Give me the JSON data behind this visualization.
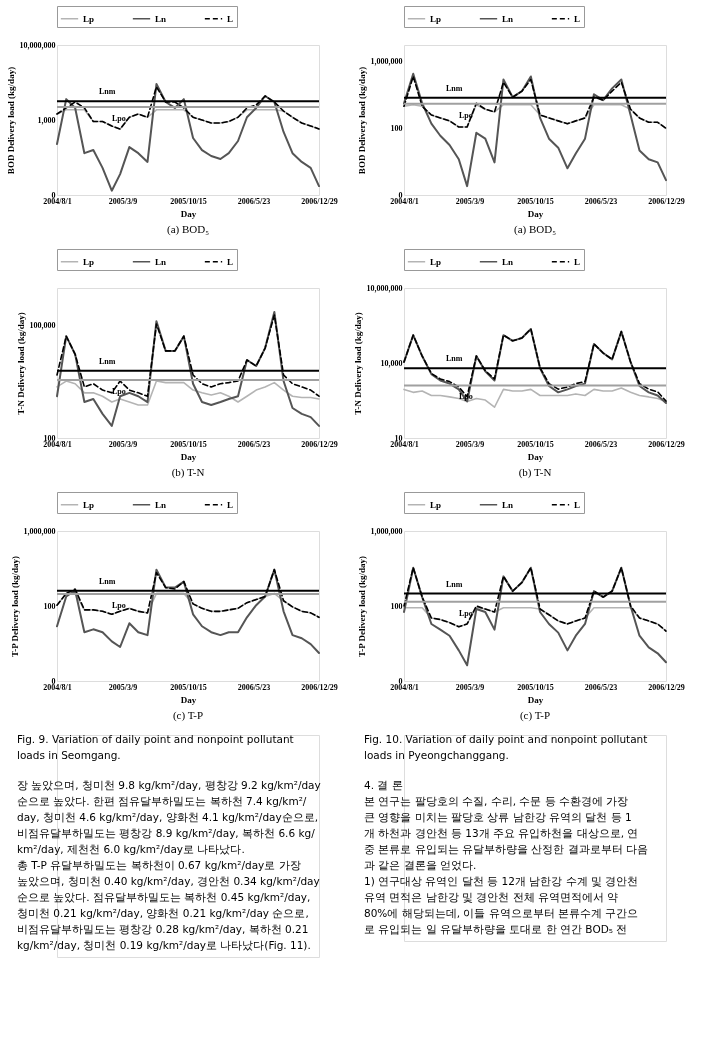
{
  "chart_data": [
    {
      "type": "line",
      "title": "(a)  BOD₅",
      "xlabel": "Day",
      "ylabel": "BOD Delivery load (kg/day)",
      "log": "y",
      "legend": "top",
      "x": [
        "2004-08-01",
        "2004-09-01",
        "2004-10-01",
        "2004-11-01",
        "2004-12-01",
        "2005-01-01",
        "2005-02-01",
        "2005-03-01",
        "2005-04-01",
        "2005-05-01",
        "2005-06-01",
        "2005-07-01",
        "2005-08-01",
        "2005-09-01",
        "2005-10-01",
        "2005-11-01",
        "2005-12-01",
        "2006-01-01",
        "2006-02-01",
        "2006-03-01",
        "2006-04-01",
        "2006-05-01",
        "2006-06-01",
        "2006-07-01",
        "2006-08-01",
        "2006-09-01",
        "2006-10-01",
        "2006-11-01",
        "2006-12-01",
        "2006-12-29"
      ],
      "xlim": [
        "2004-08-01",
        "2006-12-29"
      ],
      "xticks": [
        {
          "value": "2004-08-01",
          "label": "2004/8/1"
        },
        {
          "value": "2005-03-09",
          "label": "2005/3/9"
        },
        {
          "value": "2005-10-15",
          "label": "2005/10/15"
        },
        {
          "value": "2006-05-23",
          "label": "2006/5/23"
        },
        {
          "value": "2006-12-29",
          "label": "2006/12/29"
        }
      ],
      "ylim": [
        0.1,
        10000000
      ],
      "yticks": [
        {
          "value": 0.1,
          "label": "0"
        },
        {
          "value": 1000,
          "label": "1,000"
        },
        {
          "value": 10000000,
          "label": "10,000,000"
        }
      ],
      "series": [
        {
          "name": "Lp",
          "color": "#b4b4b4",
          "values": [
            2100,
            3500,
            3500,
            3500,
            830,
            830,
            480,
            330,
            1400,
            2100,
            1400,
            3500,
            3500,
            3500,
            3500,
            1400,
            1000,
            690,
            690,
            830,
            1400,
            3500,
            3500,
            3500,
            3500,
            3000,
            1400,
            690,
            480,
            330
          ]
        },
        {
          "name": "Ln",
          "color": "#555555",
          "values": [
            52,
            13000,
            4400,
            17,
            25,
            2.8,
            0.17,
            1.3,
            36,
            17,
            5.8,
            83000,
            9100,
            4400,
            13000,
            110,
            25,
            12,
            8.3,
            17,
            76,
            1400,
            4400,
            19000,
            9100,
            230,
            17,
            5.8,
            2.8,
            0.3
          ]
        },
        {
          "name": "L",
          "color": "#000000",
          "line_style": "dashed",
          "values": [
            2100,
            4400,
            9100,
            4400,
            830,
            830,
            480,
            330,
            1400,
            2100,
            1400,
            58000,
            9100,
            9100,
            4400,
            1400,
            1000,
            690,
            690,
            830,
            1400,
            4400,
            6300,
            19000,
            9100,
            3000,
            1400,
            690,
            480,
            330
          ]
        }
      ],
      "ref_lines": [
        {
          "axis": "y",
          "value": 10000,
          "label": "Lnm",
          "color": "#000000"
        },
        {
          "axis": "y",
          "value": 4900,
          "label": "Lpo",
          "color": "#a0a0a0"
        }
      ]
    },
    {
      "type": "line",
      "title": "(a)  BOD₅",
      "xlabel": "Day",
      "ylabel": "BOD Delivery load (kg/day)",
      "log": "y",
      "legend": "top",
      "x": [
        "2004-08-01",
        "2004-09-01",
        "2004-10-01",
        "2004-11-01",
        "2004-12-01",
        "2005-01-01",
        "2005-02-01",
        "2005-03-01",
        "2005-04-01",
        "2005-05-01",
        "2005-06-01",
        "2005-07-01",
        "2005-08-01",
        "2005-09-01",
        "2005-10-01",
        "2005-11-01",
        "2005-12-01",
        "2006-01-01",
        "2006-02-01",
        "2006-03-01",
        "2006-04-01",
        "2006-05-01",
        "2006-06-01",
        "2006-07-01",
        "2006-08-01",
        "2006-09-01",
        "2006-10-01",
        "2006-11-01",
        "2006-12-01",
        "2006-12-29"
      ],
      "xlim": [
        "2004-08-01",
        "2006-12-29"
      ],
      "xticks": [
        {
          "value": "2004-08-01",
          "label": "2004/8/1"
        },
        {
          "value": "2005-03-09",
          "label": "2005/3/9"
        },
        {
          "value": "2005-10-15",
          "label": "2005/10/15"
        },
        {
          "value": "2006-05-23",
          "label": "2006/5/23"
        },
        {
          "value": "2006-12-29",
          "label": "2006/12/29"
        }
      ],
      "ylim": [
        0.01,
        10000000
      ],
      "yticks": [
        {
          "value": 0.01,
          "label": "0"
        },
        {
          "value": 100,
          "label": "100"
        },
        {
          "value": 1000000,
          "label": "1,000,000"
        }
      ],
      "series": [
        {
          "name": "Lp",
          "color": "#b4b4b4",
          "values": [
            2100,
            2600,
            2100,
            630,
            420,
            280,
            120,
            120,
            2600,
            1400,
            960,
            2600,
            2600,
            2600,
            2600,
            630,
            420,
            280,
            190,
            280,
            420,
            2600,
            2600,
            2600,
            2600,
            1400,
            420,
            230,
            230,
            100
          ]
        },
        {
          "name": "Ln",
          "color": "#555555",
          "values": [
            3200,
            190000,
            3200,
            190,
            36,
            10,
            1.4,
            0.034,
            54,
            24,
            0.9,
            85000,
            7400,
            17000,
            130000,
            420,
            24,
            6.9,
            0.4,
            3.1,
            24,
            11000,
            4900,
            25000,
            85000,
            630,
            4.7,
            1.4,
            0.9,
            0.078
          ]
        },
        {
          "name": "L",
          "color": "#000000",
          "line_style": "dashed",
          "values": [
            2100,
            130000,
            2100,
            630,
            420,
            280,
            120,
            120,
            3200,
            1400,
            960,
            58000,
            7400,
            17000,
            85000,
            630,
            420,
            280,
            190,
            280,
            420,
            7400,
            4900,
            17000,
            58000,
            1400,
            420,
            230,
            230,
            100
          ]
        }
      ],
      "ref_lines": [
        {
          "axis": "y",
          "value": 6800,
          "label": "Lnm",
          "color": "#000000"
        },
        {
          "axis": "y",
          "value": 3000,
          "label": "Lpo",
          "color": "#a0a0a0"
        }
      ]
    },
    {
      "type": "line",
      "title": "(b)  T-N",
      "xlabel": "Day",
      "ylabel": "T-N Delivery load (kg/day)",
      "log": "y",
      "legend": "top",
      "x": [
        "2004-08-01",
        "2004-09-01",
        "2004-10-01",
        "2004-11-01",
        "2004-12-01",
        "2005-01-01",
        "2005-02-01",
        "2005-03-01",
        "2005-04-01",
        "2005-05-01",
        "2005-06-01",
        "2005-07-01",
        "2005-08-01",
        "2005-09-01",
        "2005-10-01",
        "2005-11-01",
        "2005-12-01",
        "2006-01-01",
        "2006-02-01",
        "2006-03-01",
        "2006-04-01",
        "2006-05-01",
        "2006-06-01",
        "2006-07-01",
        "2006-08-01",
        "2006-09-01",
        "2006-10-01",
        "2006-11-01",
        "2006-12-01",
        "2006-12-29"
      ],
      "xlim": [
        "2004-08-01",
        "2006-12-29"
      ],
      "xticks": [
        {
          "value": "2004-08-01",
          "label": "2004/8/1"
        },
        {
          "value": "2005-03-09",
          "label": "2005/3/9"
        },
        {
          "value": "2005-10-15",
          "label": "2005/10/15"
        },
        {
          "value": "2006-05-23",
          "label": "2006/5/23"
        },
        {
          "value": "2006-12-29",
          "label": "2006/12/29"
        }
      ],
      "ylim": [
        100,
        1000000
      ],
      "yticks": [
        {
          "value": 100,
          "label": "100"
        },
        {
          "value": 100000,
          "label": "100,000"
        }
      ],
      "series": [
        {
          "name": "Lp",
          "color": "#b4b4b4",
          "values": [
            2300,
            3300,
            2800,
            1600,
            1600,
            1300,
            910,
            1100,
            910,
            760,
            760,
            3300,
            3000,
            3000,
            3000,
            1900,
            1600,
            1400,
            1600,
            1300,
            910,
            1300,
            1900,
            2300,
            3000,
            1900,
            1300,
            1200,
            1200,
            1100
          ]
        },
        {
          "name": "Ln",
          "color": "#555555",
          "values": [
            1300,
            52000,
            17000,
            910,
            1100,
            440,
            210,
            1300,
            1600,
            1300,
            910,
            130000,
            21000,
            21000,
            52000,
            2800,
            910,
            760,
            910,
            1100,
            1300,
            12000,
            8300,
            25000,
            230000,
            3300,
            630,
            440,
            360,
            210
          ]
        },
        {
          "name": "L",
          "color": "#000000",
          "line_style": "dashed",
          "values": [
            4800,
            52000,
            17000,
            2300,
            2800,
            1900,
            1600,
            3300,
            1900,
            1600,
            1300,
            110000,
            21000,
            21000,
            52000,
            4800,
            2800,
            2300,
            2800,
            3000,
            3300,
            12000,
            8300,
            25000,
            190000,
            4800,
            2800,
            2300,
            1900,
            1300
          ]
        }
      ],
      "ref_lines": [
        {
          "axis": "y",
          "value": 6200,
          "label": "Lnm",
          "color": "#000000"
        },
        {
          "axis": "y",
          "value": 3500,
          "label": "Lpo",
          "color": "#a0a0a0"
        }
      ]
    },
    {
      "type": "line",
      "title": "(b)  T-N",
      "xlabel": "Day",
      "ylabel": "T-N Delivery load (kg/day)",
      "log": "y",
      "legend": "top",
      "x": [
        "2004-08-01",
        "2004-09-01",
        "2004-10-01",
        "2004-11-01",
        "2004-12-01",
        "2005-01-01",
        "2005-02-01",
        "2005-03-01",
        "2005-04-01",
        "2005-05-01",
        "2005-06-01",
        "2005-07-01",
        "2005-08-01",
        "2005-09-01",
        "2005-10-01",
        "2005-11-01",
        "2005-12-01",
        "2006-01-01",
        "2006-02-01",
        "2006-03-01",
        "2006-04-01",
        "2006-05-01",
        "2006-06-01",
        "2006-07-01",
        "2006-08-01",
        "2006-09-01",
        "2006-10-01",
        "2006-11-01",
        "2006-12-01",
        "2006-12-29"
      ],
      "xlim": [
        "2004-08-01",
        "2006-12-29"
      ],
      "xticks": [
        {
          "value": "2004-08-01",
          "label": "2004/8/1"
        },
        {
          "value": "2005-03-09",
          "label": "2005/3/9"
        },
        {
          "value": "2005-10-15",
          "label": "2005/10/15"
        },
        {
          "value": "2006-05-23",
          "label": "2006/5/23"
        },
        {
          "value": "2006-12-29",
          "label": "2006/12/29"
        }
      ],
      "ylim": [
        10,
        10000000
      ],
      "yticks": [
        {
          "value": 10,
          "label": "10"
        },
        {
          "value": 10000,
          "label": "10,000"
        },
        {
          "value": 10000000,
          "label": "10,000,000"
        }
      ],
      "series": [
        {
          "name": "Lp",
          "color": "#b4b4b4",
          "values": [
            880,
            670,
            760,
            500,
            500,
            440,
            380,
            290,
            380,
            330,
            170,
            880,
            760,
            760,
            880,
            500,
            500,
            500,
            500,
            580,
            500,
            880,
            760,
            760,
            1000,
            670,
            500,
            440,
            380,
            290
          ]
        },
        {
          "name": "Ln",
          "color": "#555555",
          "values": [
            11000,
            130000,
            19000,
            3600,
            2000,
            1500,
            880,
            290,
            19000,
            4700,
            2000,
            130000,
            77000,
            100000,
            230000,
            6200,
            1200,
            670,
            880,
            1200,
            1500,
            58000,
            25000,
            14000,
            180000,
            11000,
            1200,
            670,
            500,
            250
          ]
        },
        {
          "name": "L",
          "color": "#000000",
          "line_style": "dashed",
          "values": [
            11000,
            130000,
            19000,
            3800,
            2300,
            1800,
            1100,
            450,
            19000,
            4900,
            2300,
            130000,
            77000,
            100000,
            230000,
            6400,
            1500,
            900,
            1100,
            1500,
            1800,
            58000,
            25000,
            14000,
            180000,
            11000,
            1500,
            900,
            700,
            300
          ]
        }
      ],
      "ref_lines": [
        {
          "axis": "y",
          "value": 6200,
          "label": "Lnm",
          "color": "#000000"
        },
        {
          "axis": "y",
          "value": 1260,
          "label": "Lpo",
          "color": "#a0a0a0"
        }
      ]
    },
    {
      "type": "line",
      "title": "(c)  T-P",
      "xlabel": "Day",
      "ylabel": "T-P Delivery load (kg/day)",
      "log": "y",
      "legend": "top",
      "x": [
        "2004-08-01",
        "2004-09-01",
        "2004-10-01",
        "2004-11-01",
        "2004-12-01",
        "2005-01-01",
        "2005-02-01",
        "2005-03-01",
        "2005-04-01",
        "2005-05-01",
        "2005-06-01",
        "2005-07-01",
        "2005-08-01",
        "2005-09-01",
        "2005-10-01",
        "2005-11-01",
        "2005-12-01",
        "2006-01-01",
        "2006-02-01",
        "2006-03-01",
        "2006-04-01",
        "2006-05-01",
        "2006-06-01",
        "2006-07-01",
        "2006-08-01",
        "2006-09-01",
        "2006-10-01",
        "2006-11-01",
        "2006-12-01",
        "2006-12-29"
      ],
      "xlim": [
        "2004-08-01",
        "2006-12-29"
      ],
      "xticks": [
        {
          "value": "2004-08-01",
          "label": "2004/8/1"
        },
        {
          "value": "2005-03-09",
          "label": "2005/3/9"
        },
        {
          "value": "2005-10-15",
          "label": "2005/10/15"
        },
        {
          "value": "2006-05-23",
          "label": "2006/5/23"
        },
        {
          "value": "2006-12-29",
          "label": "2006/12/29"
        }
      ],
      "ylim": [
        0.01,
        1000000
      ],
      "yticks": [
        {
          "value": 0.01,
          "label": "0"
        },
        {
          "value": 100,
          "label": "100"
        },
        {
          "value": 1000000,
          "label": "1,000,000"
        }
      ],
      "series": [
        {
          "name": "Lp",
          "color": "#b4b4b4",
          "values": [
            110,
            470,
            470,
            62,
            62,
            52,
            36,
            52,
            75,
            52,
            43,
            470,
            470,
            470,
            470,
            130,
            75,
            52,
            52,
            62,
            75,
            150,
            220,
            320,
            470,
            190,
            90,
            52,
            43,
            25
          ]
        },
        {
          "name": "Ln",
          "color": "#555555",
          "values": [
            8.3,
            320,
            670,
            4.0,
            5.7,
            4.0,
            1.3,
            0.65,
            12,
            4.0,
            2.8,
            8700,
            960,
            960,
            2000,
            36,
            8.3,
            4.0,
            2.8,
            4.0,
            4.0,
            25,
            110,
            320,
            8700,
            52,
            2.8,
            1.9,
            0.93,
            0.31
          ]
        },
        {
          "name": "L",
          "color": "#000000",
          "line_style": "dashed",
          "values": [
            110,
            470,
            800,
            62,
            62,
            52,
            36,
            52,
            75,
            52,
            43,
            6000,
            960,
            800,
            2000,
            130,
            75,
            52,
            52,
            62,
            75,
            150,
            220,
            320,
            8700,
            190,
            90,
            52,
            43,
            25
          ]
        }
      ],
      "ref_lines": [
        {
          "axis": "y",
          "value": 650,
          "label": "Lnm",
          "color": "#000000"
        },
        {
          "axis": "y",
          "value": 430,
          "label": "Lpo",
          "color": "#a0a0a0"
        }
      ],
      "annotations": [
        "Fig. 9. Variation of daily point and nonpoint pollutant loads in Seomgang.",
        "장 높았으며, 청미천 9.8 kg/km²/day, 평창강 9.2 kg/km²/day",
        "순으로 높았다. 한편 점유달부하밀도는 복하천 7.4 kg/km²/",
        "day, 청미천 4.6 kg/km²/day, 양화천 4.1 kg/km²/day순으로,",
        "비점유달부하밀도는 평창강 8.9 kg/km²/day, 복하천 6.6 kg/",
        "km²/day, 제천천 6.0 kg/km²/day로 나타났다.",
        "총 T-P 유달부하밀도는 복하천이 0.67 kg/km²/day로 가장",
        "높았으며, 청미천 0.40 kg/km²/day, 경안천 0.34 kg/km²/day",
        "순으로 높았다. 점유달부하밀도는 복하천 0.45 kg/km²/day,",
        "청미천 0.21 kg/km²/day, 양화천 0.21 kg/km²/day 순으로,",
        "비점유달부하밀도는 평창강 0.28 kg/km²/day, 복하천 0.21",
        "kg/km²/day, 청미천 0.19 kg/km²/day로 나타났다(Fig. 11)."
      ]
    },
    {
      "type": "line",
      "title": "(c)  T-P",
      "xlabel": "Day",
      "ylabel": "T-P Delivery load (kg/day)",
      "log": "y",
      "legend": "top",
      "x": [
        "2004-08-01",
        "2004-09-01",
        "2004-10-01",
        "2004-11-01",
        "2004-12-01",
        "2005-01-01",
        "2005-02-01",
        "2005-03-01",
        "2005-04-01",
        "2005-05-01",
        "2005-06-01",
        "2005-07-01",
        "2005-08-01",
        "2005-09-01",
        "2005-10-01",
        "2005-11-01",
        "2005-12-01",
        "2006-01-01",
        "2006-02-01",
        "2006-03-01",
        "2006-04-01",
        "2006-05-01",
        "2006-06-01",
        "2006-07-01",
        "2006-08-01",
        "2006-09-01",
        "2006-10-01",
        "2006-11-01",
        "2006-12-01",
        "2006-12-29"
      ],
      "xlim": [
        "2004-08-01",
        "2006-12-29"
      ],
      "xticks": [
        {
          "value": "2004-08-01",
          "label": "2004/8/1"
        },
        {
          "value": "2005-03-09",
          "label": "2005/3/9"
        },
        {
          "value": "2005-10-15",
          "label": "2005/10/15"
        },
        {
          "value": "2006-05-23",
          "label": "2006/5/23"
        },
        {
          "value": "2006-12-29",
          "label": "2006/12/29"
        }
      ],
      "ylim": [
        0.01,
        1000000
      ],
      "yticks": [
        {
          "value": 0.01,
          "label": "0"
        },
        {
          "value": 100,
          "label": "100"
        },
        {
          "value": 1000000,
          "label": "1,000,000"
        }
      ],
      "series": [
        {
          "name": "Lp",
          "color": "#b4b4b4",
          "values": [
            80,
            80,
            80,
            23,
            19,
            13,
            7.8,
            11,
            80,
            69,
            48,
            80,
            80,
            80,
            80,
            69,
            34,
            16,
            11,
            16,
            23,
            80,
            80,
            80,
            80,
            80,
            23,
            16,
            11,
            4.6
          ]
        },
        {
          "name": "Ln",
          "color": "#555555",
          "values": [
            48,
            11000,
            300,
            11,
            5.5,
            2.6,
            0.43,
            0.069,
            69,
            48,
            5.5,
            3800,
            620,
            1800,
            11000,
            48,
            11,
            3.8,
            0.43,
            2.6,
            11,
            620,
            300,
            620,
            11000,
            100,
            2.6,
            0.62,
            0.3,
            0.1
          ]
        },
        {
          "name": "L",
          "color": "#000000",
          "line_style": "dashed",
          "values": [
            100,
            11000,
            300,
            23,
            19,
            13,
            7.8,
            11,
            100,
            69,
            48,
            3800,
            620,
            1800,
            11000,
            69,
            34,
            16,
            11,
            16,
            23,
            620,
            300,
            620,
            11000,
            100,
            23,
            16,
            11,
            4.6
          ]
        }
      ],
      "ref_lines": [
        {
          "axis": "y",
          "value": 460,
          "label": "Lnm",
          "color": "#000000"
        },
        {
          "axis": "y",
          "value": 170,
          "label": "Lpo",
          "color": "#a0a0a0"
        }
      ],
      "annotations": [
        "Fig. 10. Variation of daily point and nonpoint pollutant loads in Pyeongchanggang.",
        "4. 결 론",
        "본 연구는 팔당호의 수질, 수리, 수문 등 수환경에 가장",
        "큰 영향을 미치는 팔당호 상류 남한강 유역의 달천 등 1",
        "개 하천과 경안천 등 13개 주요 유입하천을 대상으로, 연",
        "중 본류로 유입되는 유달부하량을 산정한 결과로부터 다음",
        "과 같은 결론을 얻었다.",
        "1) 연구대상 유역인 달천 등 12개 남한강 수계 및 경안천",
        "유역 면적은 남한강 및 경안천 전체 유역면적에서 약",
        "80%에 해당되는데, 이들 유역으로부터 본류수계 구간으",
        "로 유입되는 일 유달부하량을 토대로 한 연간 BOD₅ 전"
      ]
    }
  ]
}
